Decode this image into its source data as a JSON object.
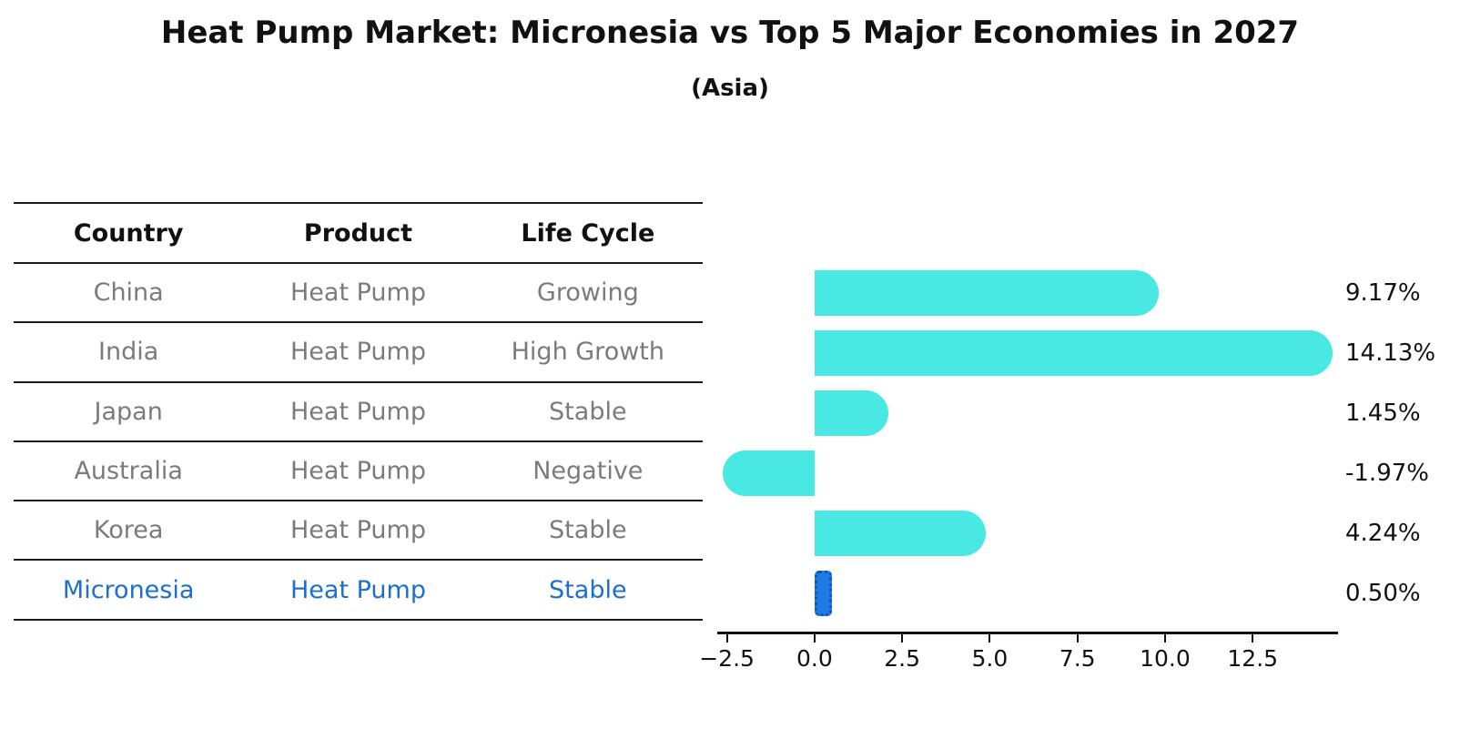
{
  "header": {
    "title": "Heat Pump Market: Micronesia vs Top 5 Major Economies in 2027",
    "subtitle": "(Asia)"
  },
  "table": {
    "columns": [
      "Country",
      "Product",
      "Life Cycle"
    ],
    "rows": [
      {
        "country": "China",
        "product": "Heat Pump",
        "life_cycle": "Growing",
        "highlight": false
      },
      {
        "country": "India",
        "product": "Heat Pump",
        "life_cycle": "High Growth",
        "highlight": false
      },
      {
        "country": "Japan",
        "product": "Heat Pump",
        "life_cycle": "Stable",
        "highlight": false
      },
      {
        "country": "Australia",
        "product": "Heat Pump",
        "life_cycle": "Negative",
        "highlight": false
      },
      {
        "country": "Korea",
        "product": "Heat Pump",
        "life_cycle": "Stable",
        "highlight": false
      },
      {
        "country": "Micronesia",
        "product": "Heat Pump",
        "life_cycle": "Stable",
        "highlight": true
      }
    ]
  },
  "chart_data": {
    "type": "bar",
    "orientation": "horizontal",
    "title": "Heat Pump Market: Micronesia vs Top 5 Major Economies in 2027",
    "subtitle": "(Asia)",
    "categories": [
      "China",
      "India",
      "Japan",
      "Australia",
      "Korea",
      "Micronesia"
    ],
    "values": [
      9.17,
      14.13,
      1.45,
      -1.97,
      4.24,
      0.5
    ],
    "value_labels": [
      "9.17%",
      "14.13%",
      "1.45%",
      "-1.97%",
      "4.24%",
      "0.50%"
    ],
    "highlight_index": 5,
    "xlabel": "",
    "ylabel": "",
    "xlim": [
      -2.775,
      14.935
    ],
    "x_ticks": [
      -2.5,
      0,
      2.5,
      5,
      7.5,
      10,
      12.5
    ],
    "x_tick_labels": [
      "−2.5",
      "0.0",
      "2.5",
      "5.0",
      "7.5",
      "10.0",
      "12.5"
    ],
    "grid": false,
    "legend": false,
    "colors": {
      "bar": "#49E8E3",
      "highlight_bar": "#1F7BE4",
      "highlight_edge": "#1254C4",
      "highlight_text": "#1B6FD0",
      "cell_text": "#7b7b7b",
      "axis": "#111111"
    }
  }
}
